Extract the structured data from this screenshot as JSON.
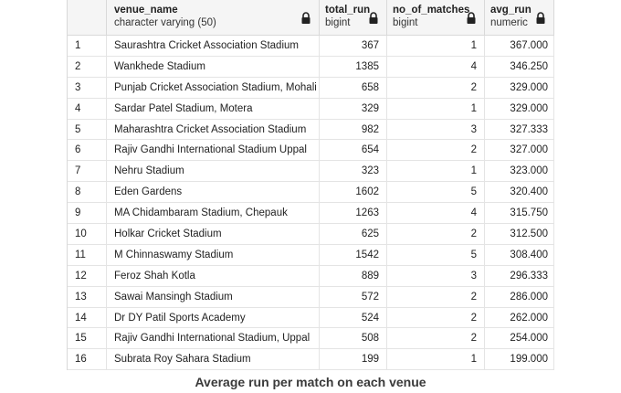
{
  "columns": [
    {
      "name": "venue_name",
      "type": "character varying (50)"
    },
    {
      "name": "total_run",
      "type": "bigint"
    },
    {
      "name": "no_of_matches",
      "type": "bigint"
    },
    {
      "name": "avg_run",
      "type": "numeric"
    }
  ],
  "rows": [
    {
      "n": "1",
      "venue": "Saurashtra Cricket Association Stadium",
      "total_run": "367",
      "matches": "1",
      "avg": "367.000"
    },
    {
      "n": "2",
      "venue": "Wankhede Stadium",
      "total_run": "1385",
      "matches": "4",
      "avg": "346.250"
    },
    {
      "n": "3",
      "venue": "Punjab Cricket Association Stadium, Mohali",
      "total_run": "658",
      "matches": "2",
      "avg": "329.000"
    },
    {
      "n": "4",
      "venue": "Sardar Patel Stadium, Motera",
      "total_run": "329",
      "matches": "1",
      "avg": "329.000"
    },
    {
      "n": "5",
      "venue": "Maharashtra Cricket Association Stadium",
      "total_run": "982",
      "matches": "3",
      "avg": "327.333"
    },
    {
      "n": "6",
      "venue": "Rajiv Gandhi International Stadium Uppal",
      "total_run": "654",
      "matches": "2",
      "avg": "327.000"
    },
    {
      "n": "7",
      "venue": "Nehru Stadium",
      "total_run": "323",
      "matches": "1",
      "avg": "323.000"
    },
    {
      "n": "8",
      "venue": "Eden Gardens",
      "total_run": "1602",
      "matches": "5",
      "avg": "320.400"
    },
    {
      "n": "9",
      "venue": "MA Chidambaram Stadium, Chepauk",
      "total_run": "1263",
      "matches": "4",
      "avg": "315.750"
    },
    {
      "n": "10",
      "venue": "Holkar Cricket Stadium",
      "total_run": "625",
      "matches": "2",
      "avg": "312.500"
    },
    {
      "n": "11",
      "venue": "M Chinnaswamy Stadium",
      "total_run": "1542",
      "matches": "5",
      "avg": "308.400"
    },
    {
      "n": "12",
      "venue": "Feroz Shah Kotla",
      "total_run": "889",
      "matches": "3",
      "avg": "296.333"
    },
    {
      "n": "13",
      "venue": "Sawai Mansingh Stadium",
      "total_run": "572",
      "matches": "2",
      "avg": "286.000"
    },
    {
      "n": "14",
      "venue": "Dr DY Patil Sports Academy",
      "total_run": "524",
      "matches": "2",
      "avg": "262.000"
    },
    {
      "n": "15",
      "venue": "Rajiv Gandhi International Stadium, Uppal",
      "total_run": "508",
      "matches": "2",
      "avg": "254.000"
    },
    {
      "n": "16",
      "venue": "Subrata Roy Sahara Stadium",
      "total_run": "199",
      "matches": "1",
      "avg": "199.000"
    }
  ],
  "icons": {
    "column_lock": "lock-icon"
  },
  "caption": "Average run per match on each venue"
}
